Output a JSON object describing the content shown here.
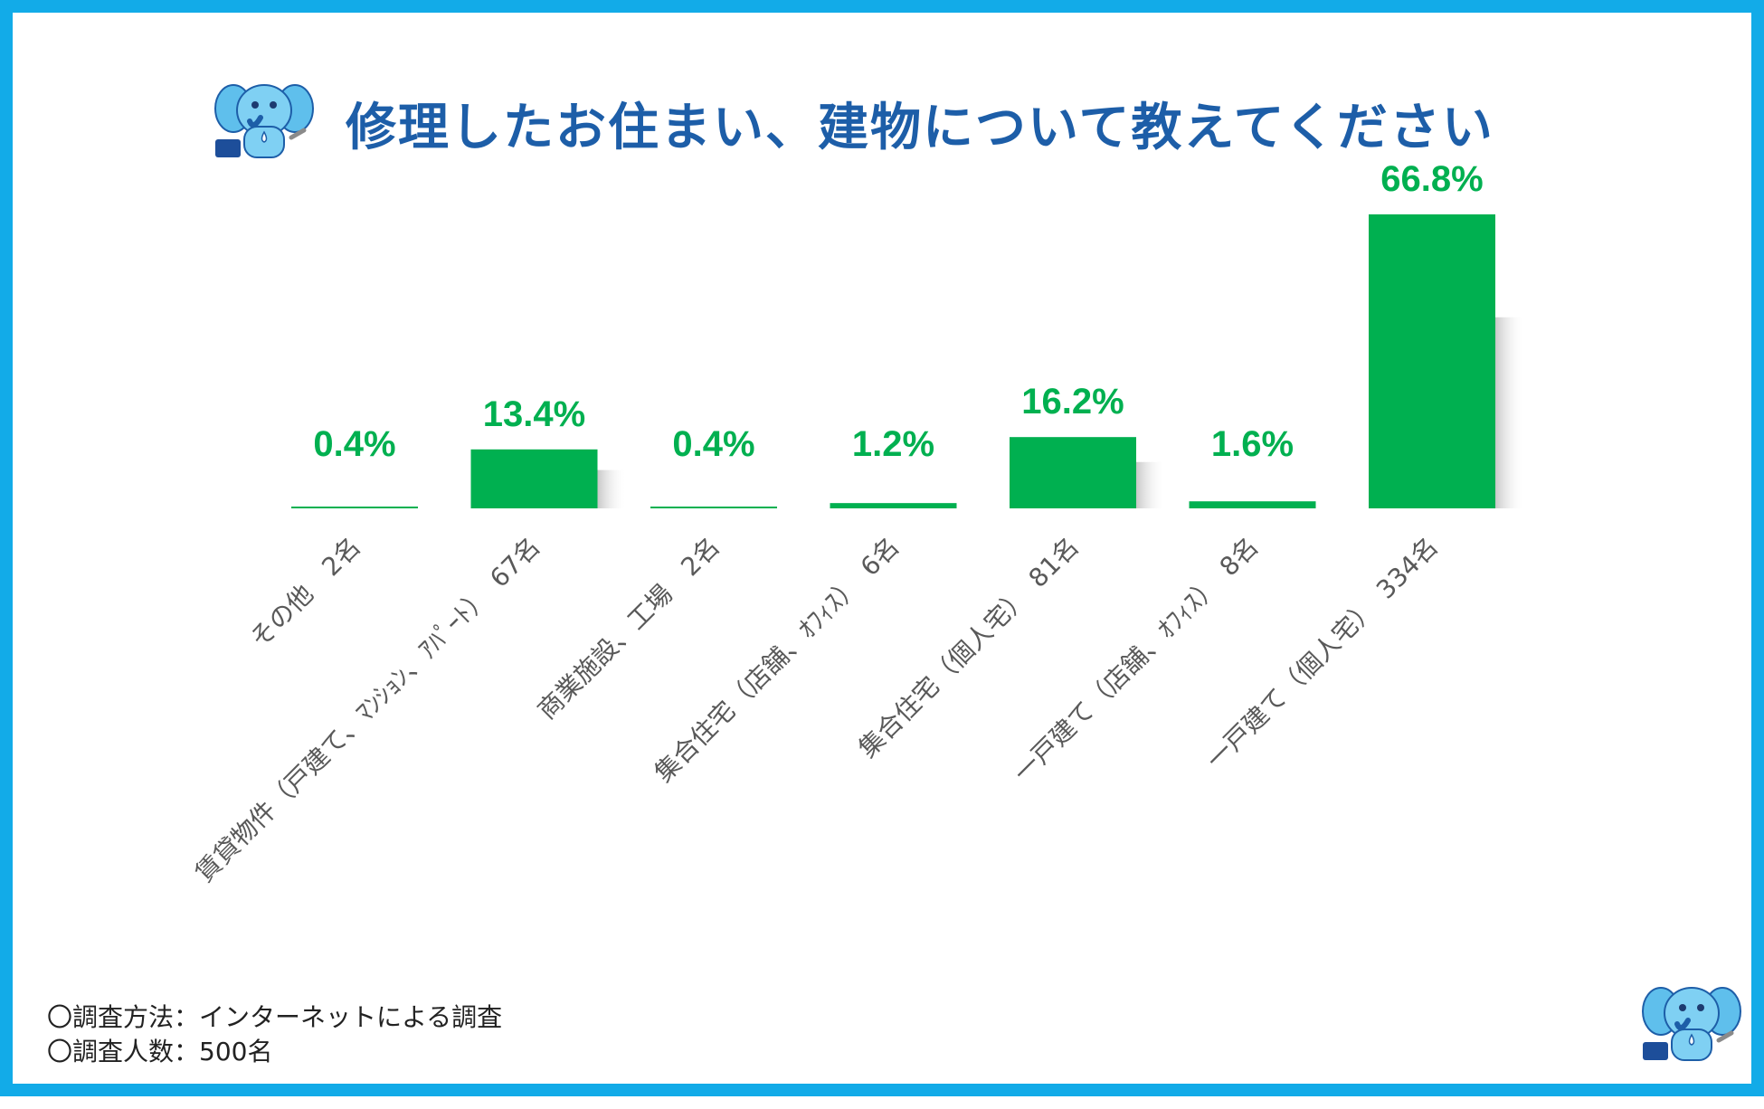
{
  "title": "修理したお住まい、建物について教えてください",
  "chart_data": {
    "type": "bar",
    "title": "修理したお住まい、建物について教えてください",
    "categories": [
      "その他　2名",
      "賃貸物件（戸建て、ﾏﾝｼｮﾝ、ｱﾊﾟｰﾄ）　67名",
      "商業施設、工場　2名",
      "集合住宅（店舗、ｵﾌｨｽ）　6名",
      "集合住宅（個人宅）　81名",
      "一戸建て（店舗、ｵﾌｨｽ）　8名",
      "一戸建て（個人宅）　334名"
    ],
    "values": [
      0.4,
      13.4,
      0.4,
      1.2,
      16.2,
      1.6,
      66.8
    ],
    "data_labels": [
      "0.4%",
      "13.4%",
      "0.4%",
      "1.2%",
      "16.2%",
      "1.6%",
      "66.8%"
    ],
    "ylim": [
      0,
      66.8
    ],
    "grid": false,
    "legend": "none",
    "bar_color": "#00b050",
    "label_color": "#00b050",
    "axis_label_color": "#595959"
  },
  "notes": {
    "method": "〇調査方法：インターネットによる調査",
    "count": "〇調査人数：500名"
  },
  "colors": {
    "frame": "#12abe8",
    "title": "#1d5ea8",
    "mascot": "#5fbfec"
  },
  "icons": {
    "mascot_top": "elephant-mascot-icon",
    "mascot_bottom": "elephant-mascot-icon"
  }
}
